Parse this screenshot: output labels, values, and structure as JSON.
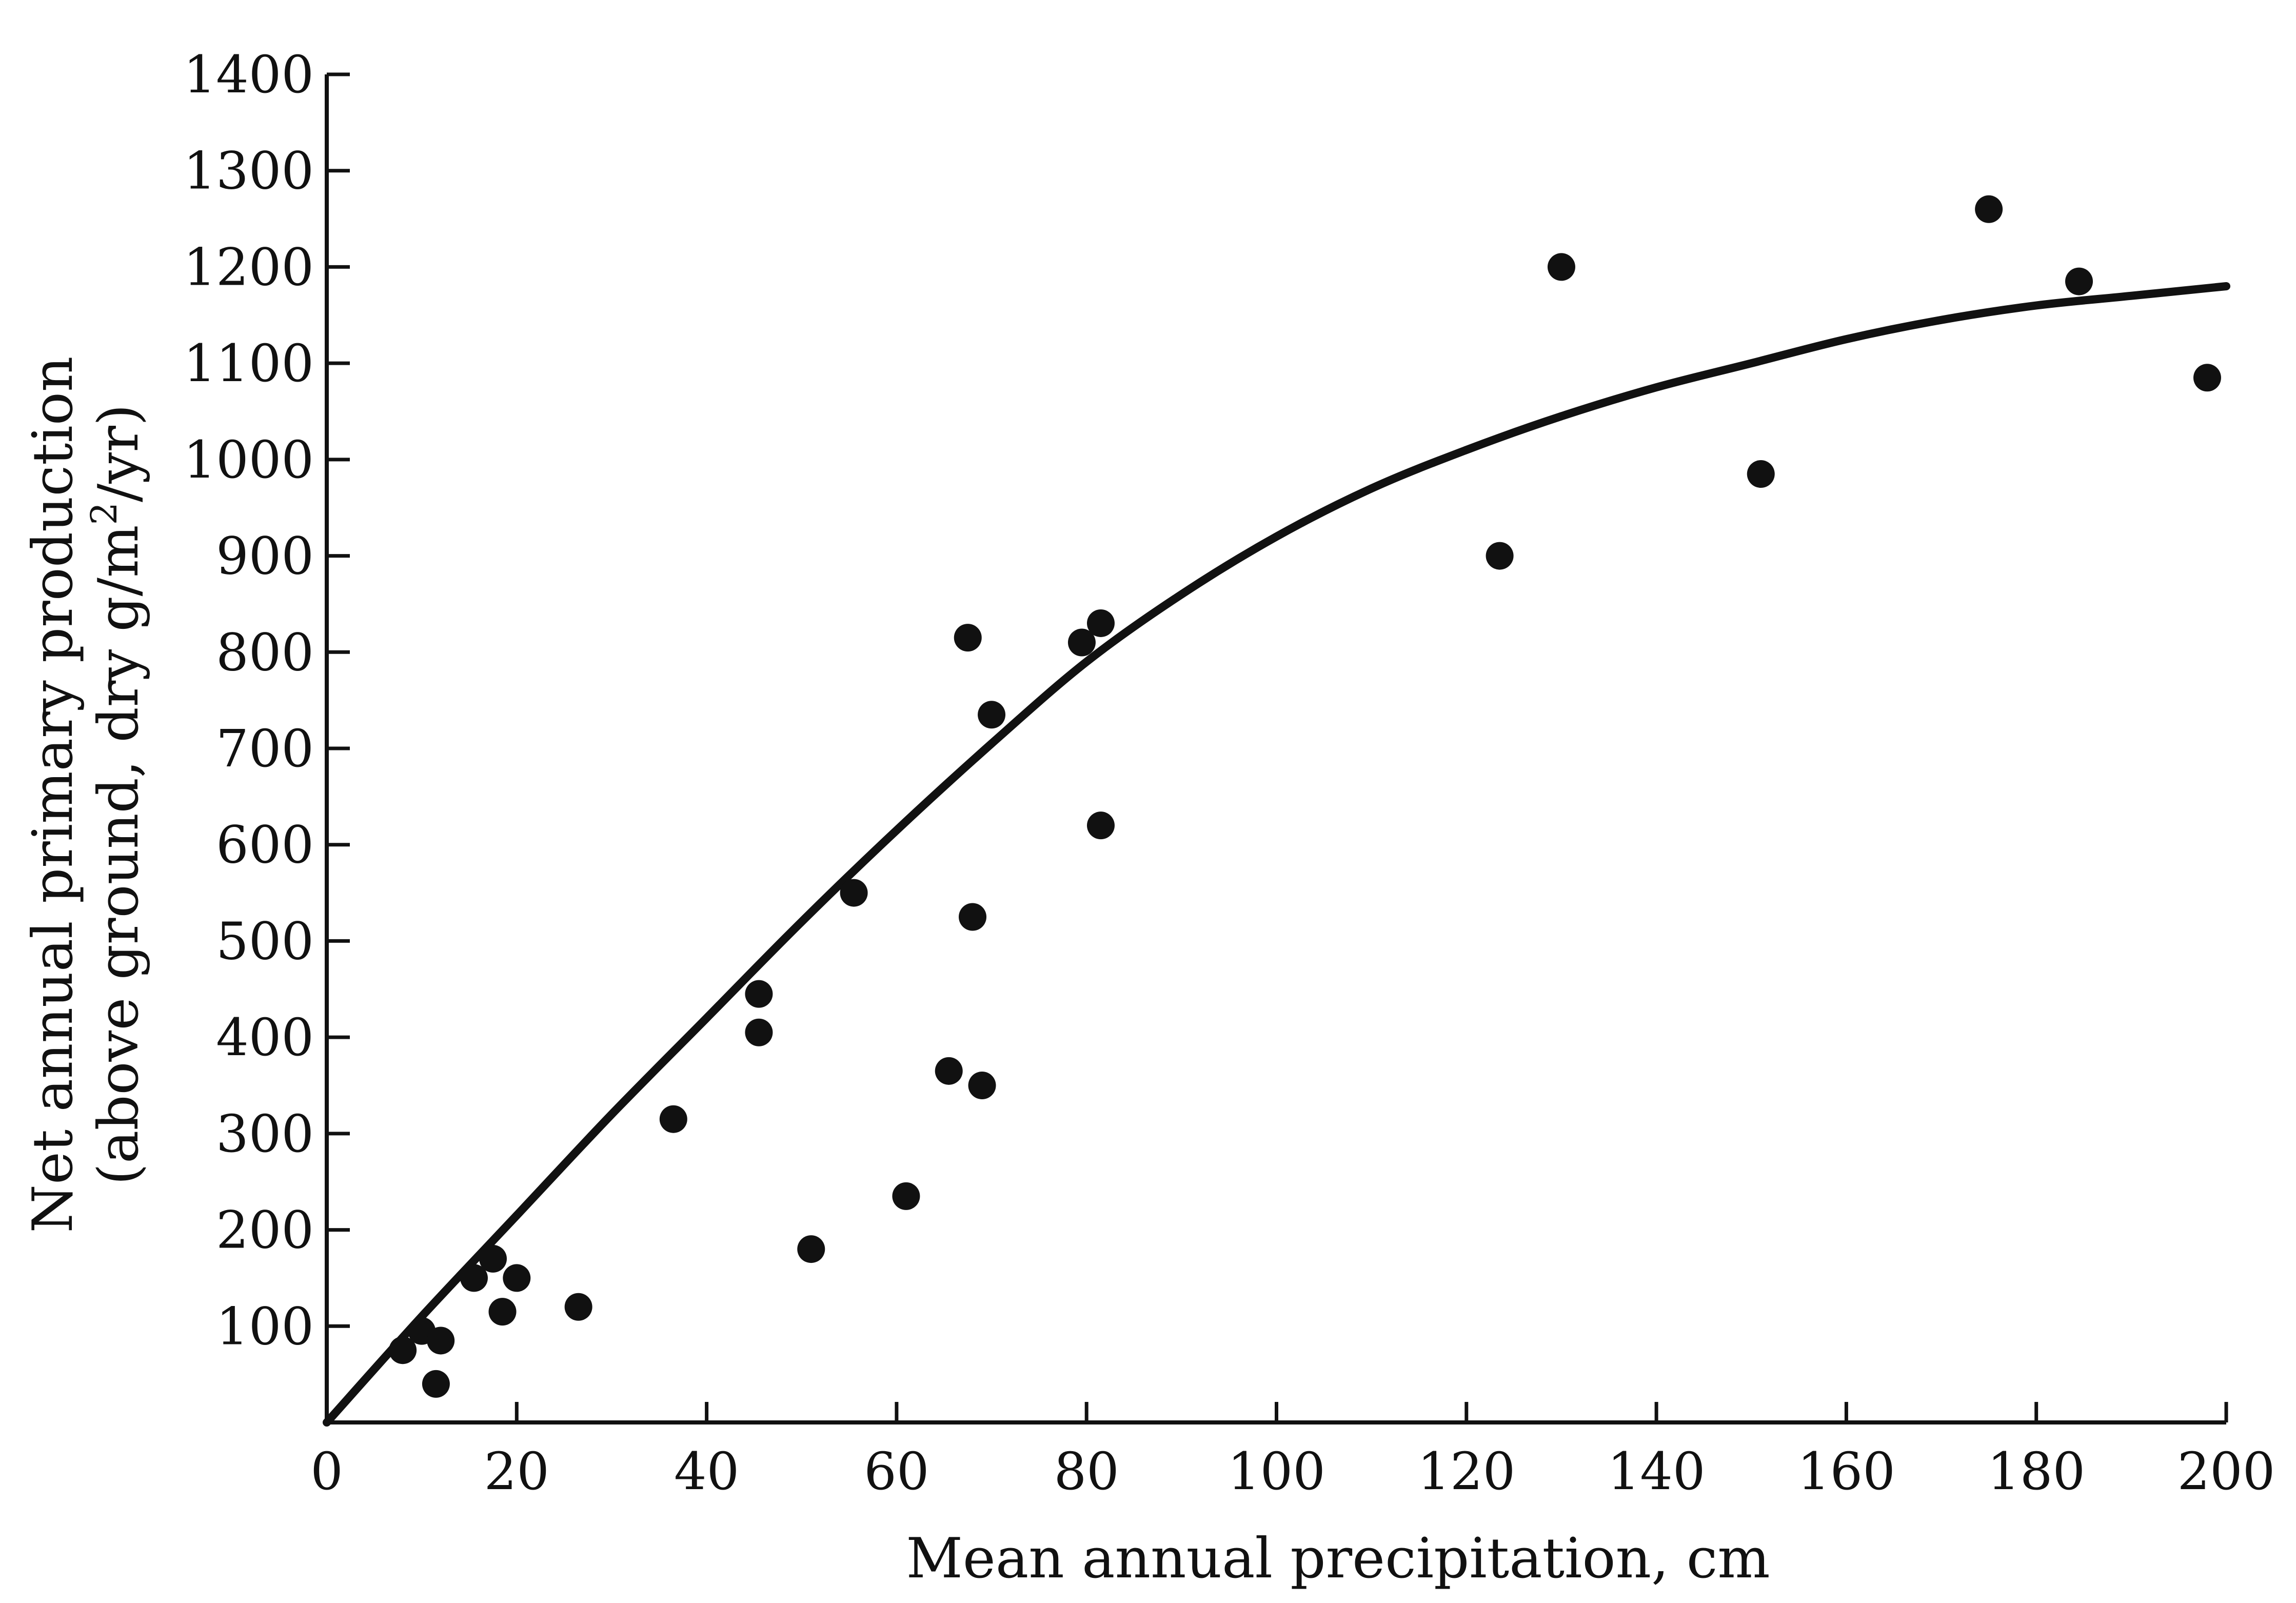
{
  "chart_data": {
    "type": "scatter",
    "title": "",
    "xlabel": "Mean annual precipitation, cm",
    "ylabel_line1": "Net annual primary production",
    "ylabel_line2_prefix": "(above ground, dry g/m",
    "ylabel_line2_sup": "2",
    "ylabel_line2_suffix": "/yr)",
    "xlim": [
      0,
      200
    ],
    "ylim": [
      0,
      1400
    ],
    "x_ticks": [
      0,
      20,
      40,
      60,
      80,
      100,
      120,
      140,
      160,
      180,
      200
    ],
    "y_ticks": [
      100,
      200,
      300,
      400,
      500,
      600,
      700,
      800,
      900,
      1000,
      1100,
      1200,
      1300,
      1400
    ],
    "grid": false,
    "points": [
      {
        "x": 8,
        "y": 75
      },
      {
        "x": 10,
        "y": 95
      },
      {
        "x": 11.5,
        "y": 40
      },
      {
        "x": 12,
        "y": 85
      },
      {
        "x": 15.5,
        "y": 150
      },
      {
        "x": 17.5,
        "y": 170
      },
      {
        "x": 18.5,
        "y": 115
      },
      {
        "x": 20,
        "y": 150
      },
      {
        "x": 26.5,
        "y": 120
      },
      {
        "x": 36.5,
        "y": 315
      },
      {
        "x": 45.5,
        "y": 445
      },
      {
        "x": 45.5,
        "y": 405
      },
      {
        "x": 51,
        "y": 180
      },
      {
        "x": 55.5,
        "y": 550
      },
      {
        "x": 61,
        "y": 235
      },
      {
        "x": 65.5,
        "y": 365
      },
      {
        "x": 67.5,
        "y": 815
      },
      {
        "x": 68,
        "y": 525
      },
      {
        "x": 69,
        "y": 350
      },
      {
        "x": 70,
        "y": 735
      },
      {
        "x": 79.5,
        "y": 810
      },
      {
        "x": 81.5,
        "y": 830
      },
      {
        "x": 81.5,
        "y": 620
      },
      {
        "x": 123.5,
        "y": 900
      },
      {
        "x": 130,
        "y": 1200
      },
      {
        "x": 151,
        "y": 985
      },
      {
        "x": 175,
        "y": 1260
      },
      {
        "x": 184.5,
        "y": 1185
      },
      {
        "x": 198,
        "y": 1085
      }
    ],
    "fit_curve": [
      {
        "x": 0,
        "y": 0
      },
      {
        "x": 10,
        "y": 110
      },
      {
        "x": 20,
        "y": 215
      },
      {
        "x": 30,
        "y": 320
      },
      {
        "x": 40,
        "y": 420
      },
      {
        "x": 50,
        "y": 520
      },
      {
        "x": 60,
        "y": 615
      },
      {
        "x": 70,
        "y": 705
      },
      {
        "x": 80,
        "y": 790
      },
      {
        "x": 90,
        "y": 860
      },
      {
        "x": 100,
        "y": 920
      },
      {
        "x": 110,
        "y": 970
      },
      {
        "x": 120,
        "y": 1010
      },
      {
        "x": 130,
        "y": 1045
      },
      {
        "x": 140,
        "y": 1075
      },
      {
        "x": 150,
        "y": 1100
      },
      {
        "x": 160,
        "y": 1125
      },
      {
        "x": 170,
        "y": 1145
      },
      {
        "x": 180,
        "y": 1160
      },
      {
        "x": 190,
        "y": 1170
      },
      {
        "x": 200,
        "y": 1180
      }
    ]
  }
}
